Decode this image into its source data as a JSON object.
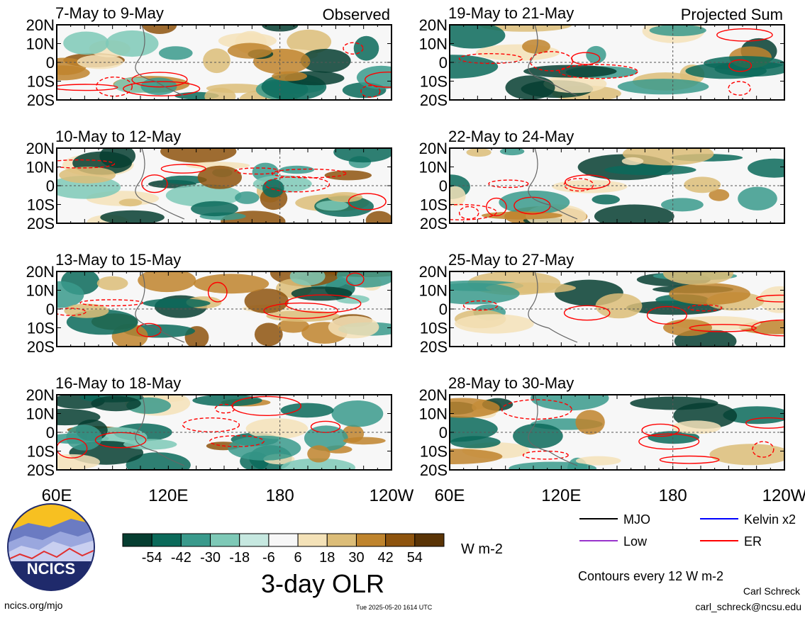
{
  "chart_data": {
    "type": "heatmap",
    "title": "3-day OLR",
    "units": "W m-2",
    "contour_note": "Contours every 12 W m-2",
    "columns": [
      {
        "header": "Observed",
        "panels": [
          "7-May to 9-May",
          "10-May to 12-May",
          "13-May to 15-May",
          "16-May to 18-May"
        ]
      },
      {
        "header": "Projected Sum",
        "panels": [
          "19-May to 21-May",
          "22-May to 24-May",
          "25-May to 27-May",
          "28-May to 30-May"
        ]
      }
    ],
    "x_ticks": [
      "60E",
      "120E",
      "180",
      "120W"
    ],
    "y_ticks": [
      "20N",
      "10N",
      "0",
      "10S",
      "20S"
    ],
    "colorbar": {
      "ticks": [
        "-54",
        "-42",
        "-30",
        "-18",
        "-6",
        "6",
        "18",
        "30",
        "42",
        "54"
      ],
      "colors": [
        "#063e31",
        "#0b6a5a",
        "#3a9a8c",
        "#7ec9b7",
        "#c6e8e0",
        "#f7f7f7",
        "#f4e2b8",
        "#dcbd78",
        "#bf842d",
        "#8e540e",
        "#5a3406"
      ]
    },
    "legend": [
      {
        "label": "MJO",
        "color": "#000000"
      },
      {
        "label": "Kelvin x2",
        "color": "#0000ff"
      },
      {
        "label": "Low",
        "color": "#9933cc"
      },
      {
        "label": "ER",
        "color": "#ff0000"
      }
    ]
  },
  "footer": {
    "site": "ncics.org/mjo",
    "timestamp": "Tue 2025-05-20 1614 UTC",
    "author": "Carl Schreck",
    "email": "carl_schreck@ncsu.edu"
  },
  "logo": {
    "text": "NCICS"
  }
}
